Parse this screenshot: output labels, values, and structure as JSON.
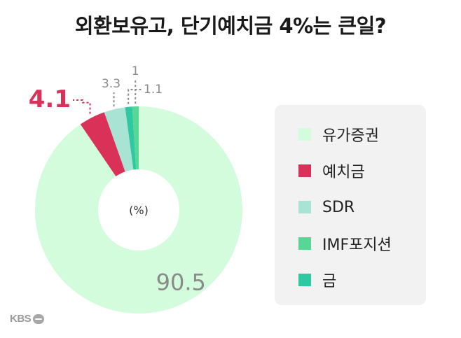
{
  "title": "외환보유고, 단기예치금 4%는 큰일?",
  "logo": "KBS",
  "chart_data": {
    "type": "pie",
    "unit_label": "(%)",
    "categories": [
      "유가증권",
      "예치금",
      "SDR",
      "IMF포지션",
      "금"
    ],
    "values": [
      90.5,
      4.1,
      3.3,
      1,
      1.1
    ],
    "value_labels": [
      "90.5",
      "4.1",
      "3.3",
      "1",
      "1.1"
    ],
    "colors": [
      "#d2fcdc",
      "#d93158",
      "#a9e3d3",
      "#57d696",
      "#2ec9a0"
    ],
    "label_colors": [
      "#8a8a8a",
      "#d93158",
      "#8a8a8a",
      "#8a8a8a",
      "#8a8a8a"
    ]
  }
}
